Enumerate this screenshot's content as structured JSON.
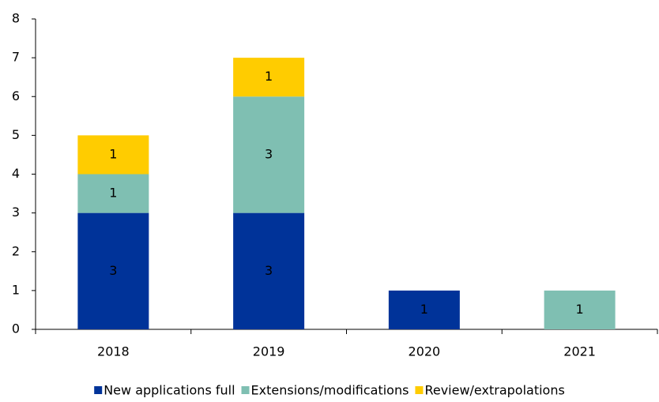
{
  "chart_data": {
    "type": "stacked_bar",
    "categories": [
      "2018",
      "2019",
      "2020",
      "2021"
    ],
    "series": [
      {
        "name": "New applications full",
        "color": "#003399",
        "label_color": "#ffffff",
        "values": [
          3,
          3,
          1,
          0
        ]
      },
      {
        "name": "Extensions/modifications",
        "color": "#7fbfb2",
        "label_color": "#000000",
        "values": [
          1,
          3,
          0,
          1
        ]
      },
      {
        "name": "Review/extrapolations",
        "color": "#ffcc00",
        "label_color": "#000000",
        "values": [
          1,
          1,
          0,
          0
        ]
      }
    ],
    "ylim": [
      0,
      8
    ],
    "yticks": [
      0,
      1,
      2,
      3,
      4,
      5,
      6,
      7,
      8
    ],
    "grid": false,
    "legend": "bottom"
  }
}
